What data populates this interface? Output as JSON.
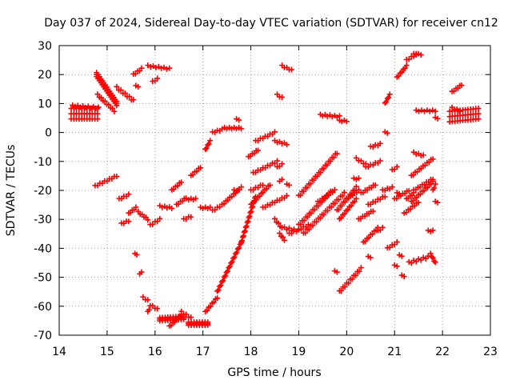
{
  "chart_data": {
    "type": "scatter",
    "title": "Day 037 of 2024, Sidereal Day-to-day VTEC variation (SDTVAR) for receiver cn12",
    "xlabel": "GPS time / hours",
    "ylabel": "SDTVAR / TECUs",
    "xlim": [
      14,
      23
    ],
    "ylim": [
      -70,
      30
    ],
    "xticks": [
      "14",
      "15",
      "16",
      "17",
      "18",
      "19",
      "20",
      "21",
      "22",
      "23"
    ],
    "yticks": [
      "-70",
      "-60",
      "-50",
      "-40",
      "-30",
      "-20",
      "-10",
      "0",
      "10",
      "20",
      "30"
    ],
    "grid": true,
    "marker": "plus",
    "color": "#ff0000",
    "segments": [
      {
        "x": [
          14.25,
          14.8
        ],
        "y": [
          6.5,
          6.5
        ],
        "spread": 4
      },
      {
        "x": [
          14.28,
          14.82
        ],
        "y": [
          9.2,
          8.5
        ],
        "spread": 0.6
      },
      {
        "x": [
          14.78,
          15.2
        ],
        "y": [
          20,
          10
        ],
        "spread": 1.5
      },
      {
        "x": [
          14.8,
          15.15
        ],
        "y": [
          13,
          7.5
        ],
        "spread": 0.6
      },
      {
        "x": [
          15.2,
          15.55
        ],
        "y": [
          15.5,
          11
        ],
        "spread": 0.8
      },
      {
        "x": [
          15.55,
          15.72
        ],
        "y": [
          20,
          22
        ],
        "spread": 0.5
      },
      {
        "x": [
          15.85,
          16.3
        ],
        "y": [
          23,
          22
        ],
        "spread": 0.5
      },
      {
        "x": [
          15.6,
          15.65
        ],
        "y": [
          16,
          16
        ],
        "spread": 0.5
      },
      {
        "x": [
          15.95,
          16.05
        ],
        "y": [
          17.5,
          18.5
        ],
        "spread": 0.5
      },
      {
        "x": [
          14.75,
          15.2
        ],
        "y": [
          -18.5,
          -15
        ],
        "spread": 0.5
      },
      {
        "x": [
          15.25,
          15.45
        ],
        "y": [
          -23,
          -21.5
        ],
        "spread": 0.5
      },
      {
        "x": [
          15.3,
          15.45
        ],
        "y": [
          -31.5,
          -30.5
        ],
        "spread": 0.5
      },
      {
        "x": [
          15.45,
          15.6
        ],
        "y": [
          -28,
          -26
        ],
        "spread": 0.5
      },
      {
        "x": [
          15.65,
          15.85
        ],
        "y": [
          -27.5,
          -30
        ],
        "spread": 0.5
      },
      {
        "x": [
          15.9,
          16.1
        ],
        "y": [
          -32,
          -30
        ],
        "spread": 0.5
      },
      {
        "x": [
          16.1,
          16.35
        ],
        "y": [
          -25.5,
          -26
        ],
        "spread": 0.5
      },
      {
        "x": [
          16.35,
          16.55
        ],
        "y": [
          -20,
          -17
        ],
        "spread": 0.5
      },
      {
        "x": [
          16.45,
          16.65
        ],
        "y": [
          -25,
          -22.5
        ],
        "spread": 0.5
      },
      {
        "x": [
          16.65,
          16.85
        ],
        "y": [
          -23,
          -23
        ],
        "spread": 0.5
      },
      {
        "x": [
          16.75,
          16.95
        ],
        "y": [
          -15,
          -12
        ],
        "spread": 0.5
      },
      {
        "x": [
          16.6,
          16.75
        ],
        "y": [
          -30,
          -29
        ],
        "spread": 0.5
      },
      {
        "x": [
          15.58,
          15.62
        ],
        "y": [
          -42,
          -42
        ],
        "spread": 0.5
      },
      {
        "x": [
          15.68,
          15.72
        ],
        "y": [
          -49,
          -48
        ],
        "spread": 0.5
      },
      {
        "x": [
          15.75,
          15.85
        ],
        "y": [
          -57,
          -58
        ],
        "spread": 0.5
      },
      {
        "x": [
          15.85,
          15.9
        ],
        "y": [
          -62,
          -60
        ],
        "spread": 0.5
      },
      {
        "x": [
          15.95,
          16.05
        ],
        "y": [
          -60,
          -61
        ],
        "spread": 0.5
      },
      {
        "x": [
          16.1,
          16.6
        ],
        "y": [
          -64.5,
          -64
        ],
        "spread": 1.2
      },
      {
        "x": [
          16.3,
          16.55
        ],
        "y": [
          -67,
          -63
        ],
        "spread": 0.5
      },
      {
        "x": [
          16.55,
          16.75
        ],
        "y": [
          -62,
          -64
        ],
        "spread": 0.5
      },
      {
        "x": [
          16.7,
          17.1
        ],
        "y": [
          -66,
          -66
        ],
        "spread": 1.2
      },
      {
        "x": [
          17.05,
          17.3
        ],
        "y": [
          -62,
          -57
        ],
        "spread": 0.5
      },
      {
        "x": [
          17.3,
          17.8
        ],
        "y": [
          -55,
          -38
        ],
        "spread": 0.5
      },
      {
        "x": [
          17.8,
          18.1
        ],
        "y": [
          -38,
          -22
        ],
        "spread": 0.5
      },
      {
        "x": [
          16.95,
          17.15
        ],
        "y": [
          -26,
          -26
        ],
        "spread": 0.5
      },
      {
        "x": [
          17.2,
          17.4
        ],
        "y": [
          -27,
          -25
        ],
        "spread": 0.5
      },
      {
        "x": [
          17.4,
          17.8
        ],
        "y": [
          -25,
          -19
        ],
        "spread": 0.5
      },
      {
        "x": [
          17.65,
          17.75
        ],
        "y": [
          -20,
          -20
        ],
        "spread": 0.5
      },
      {
        "x": [
          17.05,
          17.15
        ],
        "y": [
          -6,
          -3
        ],
        "spread": 0.5
      },
      {
        "x": [
          17.2,
          17.4
        ],
        "y": [
          0,
          1
        ],
        "spread": 0.5
      },
      {
        "x": [
          17.45,
          17.8
        ],
        "y": [
          1.5,
          1.5
        ],
        "spread": 0.5
      },
      {
        "x": [
          17.7,
          17.75
        ],
        "y": [
          4.5,
          4.5
        ],
        "spread": 0.5
      },
      {
        "x": [
          17.95,
          18.15
        ],
        "y": [
          -8.5,
          -6
        ],
        "spread": 0.5
      },
      {
        "x": [
          18.1,
          18.5
        ],
        "y": [
          -3,
          0
        ],
        "spread": 0.5
      },
      {
        "x": [
          18.5,
          18.75
        ],
        "y": [
          -3,
          -4
        ],
        "spread": 0.5
      },
      {
        "x": [
          18.0,
          18.4
        ],
        "y": [
          -25,
          -18
        ],
        "spread": 0.5
      },
      {
        "x": [
          18.05,
          18.55
        ],
        "y": [
          -14,
          -10
        ],
        "spread": 0.5
      },
      {
        "x": [
          18.55,
          18.65
        ],
        "y": [
          -12,
          -11
        ],
        "spread": 0.5
      },
      {
        "x": [
          18.0,
          18.25
        ],
        "y": [
          -20,
          -18
        ],
        "spread": 0.5
      },
      {
        "x": [
          18.25,
          18.75
        ],
        "y": [
          -26,
          -22
        ],
        "spread": 0.5
      },
      {
        "x": [
          18.6,
          18.65
        ],
        "y": [
          -17,
          -16
        ],
        "spread": 0.5
      },
      {
        "x": [
          18.75,
          18.8
        ],
        "y": [
          -18,
          -18
        ],
        "spread": 0.5
      },
      {
        "x": [
          18.5,
          18.65
        ],
        "y": [
          -30,
          -33
        ],
        "spread": 0.5
      },
      {
        "x": [
          18.6,
          18.7
        ],
        "y": [
          -35,
          -37
        ],
        "spread": 0.5
      },
      {
        "x": [
          18.7,
          19.0
        ],
        "y": [
          -33,
          -34
        ],
        "spread": 0.8
      },
      {
        "x": [
          18.8,
          19.2
        ],
        "y": [
          -35,
          -32
        ],
        "spread": 0.5
      },
      {
        "x": [
          19.0,
          19.8
        ],
        "y": [
          -22,
          -7
        ],
        "spread": 0.8
      },
      {
        "x": [
          19.0,
          19.7
        ],
        "y": [
          -32,
          -20
        ],
        "spread": 0.8
      },
      {
        "x": [
          19.1,
          19.95
        ],
        "y": [
          -35,
          -21
        ],
        "spread": 0.8
      },
      {
        "x": [
          19.4,
          19.75
        ],
        "y": [
          -24,
          -20
        ],
        "spread": 0.5
      },
      {
        "x": [
          19.45,
          19.85
        ],
        "y": [
          6,
          5.5
        ],
        "spread": 0.6
      },
      {
        "x": [
          19.85,
          20.0
        ],
        "y": [
          4,
          4
        ],
        "spread": 0.5
      },
      {
        "x": [
          18.55,
          18.65
        ],
        "y": [
          13,
          12
        ],
        "spread": 0.5
      },
      {
        "x": [
          18.65,
          18.85
        ],
        "y": [
          23,
          21.5
        ],
        "spread": 0.5
      },
      {
        "x": [
          19.8,
          20.2
        ],
        "y": [
          -27,
          -19
        ],
        "spread": 0.8
      },
      {
        "x": [
          19.85,
          20.2
        ],
        "y": [
          -30,
          -23
        ],
        "spread": 0.5
      },
      {
        "x": [
          19.85,
          20.3
        ],
        "y": [
          -55,
          -47
        ],
        "spread": 0.8
      },
      {
        "x": [
          19.75,
          19.8
        ],
        "y": [
          -48,
          -48
        ],
        "spread": 0.5
      },
      {
        "x": [
          20.0,
          20.25
        ],
        "y": [
          -23,
          -20
        ],
        "spread": 0.5
      },
      {
        "x": [
          20.15,
          20.25
        ],
        "y": [
          -16,
          -16
        ],
        "spread": 0.5
      },
      {
        "x": [
          20.2,
          20.4
        ],
        "y": [
          -9,
          -11
        ],
        "spread": 0.5
      },
      {
        "x": [
          20.25,
          20.55
        ],
        "y": [
          -30,
          -27
        ],
        "spread": 0.5
      },
      {
        "x": [
          20.3,
          20.6
        ],
        "y": [
          -21,
          -18
        ],
        "spread": 0.5
      },
      {
        "x": [
          20.35,
          20.65
        ],
        "y": [
          -38,
          -33
        ],
        "spread": 0.5
      },
      {
        "x": [
          20.45,
          20.8
        ],
        "y": [
          -25,
          -22
        ],
        "spread": 0.5
      },
      {
        "x": [
          20.4,
          20.7
        ],
        "y": [
          -12,
          -10
        ],
        "spread": 0.5
      },
      {
        "x": [
          20.45,
          20.5
        ],
        "y": [
          -43,
          -43
        ],
        "spread": 0.5
      },
      {
        "x": [
          20.5,
          20.7
        ],
        "y": [
          -5,
          -4
        ],
        "spread": 0.5
      },
      {
        "x": [
          20.65,
          20.75
        ],
        "y": [
          -34,
          -33
        ],
        "spread": 0.5
      },
      {
        "x": [
          20.75,
          20.95
        ],
        "y": [
          -20,
          -19
        ],
        "spread": 0.5
      },
      {
        "x": [
          20.8,
          20.9
        ],
        "y": [
          10,
          13
        ],
        "spread": 0.5
      },
      {
        "x": [
          20.8,
          20.85
        ],
        "y": [
          0,
          0
        ],
        "spread": 0.5
      },
      {
        "x": [
          20.85,
          21.05
        ],
        "y": [
          -40,
          -38
        ],
        "spread": 0.5
      },
      {
        "x": [
          20.95,
          21.05
        ],
        "y": [
          -13,
          -12
        ],
        "spread": 0.5
      },
      {
        "x": [
          21.0,
          21.05
        ],
        "y": [
          -46,
          -46
        ],
        "spread": 0.5
      },
      {
        "x": [
          21.0,
          21.3
        ],
        "y": [
          -23,
          -20
        ],
        "spread": 0.5
      },
      {
        "x": [
          21.05,
          21.1
        ],
        "y": [
          -21,
          -21
        ],
        "spread": 0.5
      },
      {
        "x": [
          21.05,
          21.25
        ],
        "y": [
          19,
          23
        ],
        "spread": 0.5
      },
      {
        "x": [
          21.1,
          21.15
        ],
        "y": [
          -42.5,
          -42.5
        ],
        "spread": 0.5
      },
      {
        "x": [
          21.15,
          21.2
        ],
        "y": [
          -49.5,
          -49.5
        ],
        "spread": 0.5
      },
      {
        "x": [
          21.2,
          21.5
        ],
        "y": [
          -28,
          -24
        ],
        "spread": 0.5
      },
      {
        "x": [
          21.25,
          21.45
        ],
        "y": [
          25,
          27
        ],
        "spread": 0.5
      },
      {
        "x": [
          21.4,
          21.55
        ],
        "y": [
          27,
          27
        ],
        "spread": 0.5
      },
      {
        "x": [
          21.25,
          21.4
        ],
        "y": [
          -23,
          -21
        ],
        "spread": 0.5
      },
      {
        "x": [
          21.35,
          21.8
        ],
        "y": [
          -15,
          -9
        ],
        "spread": 0.5
      },
      {
        "x": [
          21.4,
          21.6
        ],
        "y": [
          -7,
          -8
        ],
        "spread": 0.5
      },
      {
        "x": [
          21.3,
          21.7
        ],
        "y": [
          -45,
          -43
        ],
        "spread": 0.8
      },
      {
        "x": [
          21.35,
          21.8
        ],
        "y": [
          -24,
          -17
        ],
        "spread": 0.5
      },
      {
        "x": [
          21.4,
          21.8
        ],
        "y": [
          -20,
          -16
        ],
        "spread": 0.5
      },
      {
        "x": [
          21.45,
          21.85
        ],
        "y": [
          7.5,
          7.5
        ],
        "spread": 0.5
      },
      {
        "x": [
          21.7,
          21.8
        ],
        "y": [
          -34,
          -34
        ],
        "spread": 0.5
      },
      {
        "x": [
          21.75,
          21.85
        ],
        "y": [
          -42,
          -45
        ],
        "spread": 0.5
      },
      {
        "x": [
          21.85,
          21.9
        ],
        "y": [
          5,
          5
        ],
        "spread": 0.5
      },
      {
        "x": [
          21.8,
          21.85
        ],
        "y": [
          -20,
          -18
        ],
        "spread": 0.5
      },
      {
        "x": [
          21.85,
          21.9
        ],
        "y": [
          -24,
          -24
        ],
        "spread": 0.5
      },
      {
        "x": [
          22.2,
          22.4
        ],
        "y": [
          14,
          16.5
        ],
        "spread": 0.5
      },
      {
        "x": [
          22.15,
          22.75
        ],
        "y": [
          5.5,
          6.5
        ],
        "spread": 4
      },
      {
        "x": [
          22.2,
          22.35
        ],
        "y": [
          8.5,
          7.5
        ],
        "spread": 0.5
      }
    ]
  }
}
